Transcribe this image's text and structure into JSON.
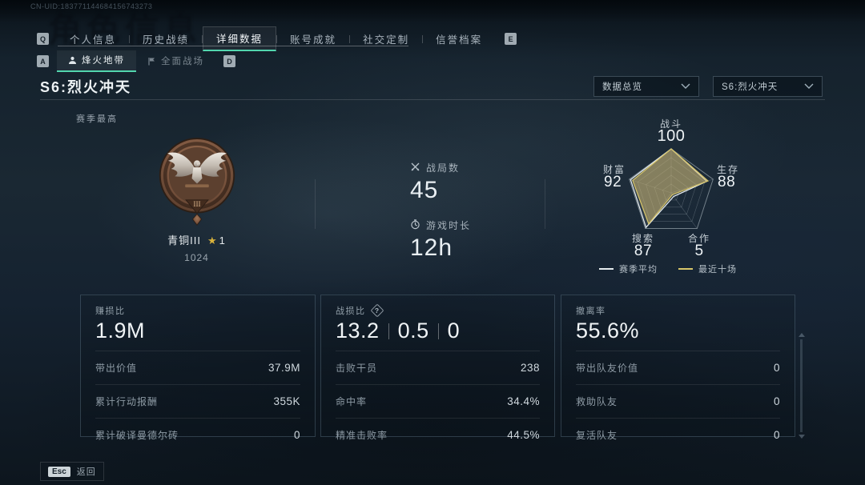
{
  "uid": "CN-UID:183771144684156743273",
  "ghost_title": "角色信息",
  "accent_color": "#52d6ae",
  "tabs": {
    "prev_key": "Q",
    "next_key": "E",
    "items": [
      {
        "label": "个人信息"
      },
      {
        "label": "历史战绩"
      },
      {
        "label": "详细数据"
      },
      {
        "label": "账号成就"
      },
      {
        "label": "社交定制"
      },
      {
        "label": "信誉档案"
      }
    ],
    "active": "详细数据"
  },
  "subtabs": {
    "prev_key": "A",
    "next_key": "D",
    "items": [
      {
        "label": "烽火地带",
        "icon": "person-icon"
      },
      {
        "label": "全面战场",
        "icon": "flag-icon"
      }
    ],
    "active": "烽火地带"
  },
  "page": {
    "title": "S6:烈火冲天",
    "season_section_label": "赛季最高"
  },
  "filters": {
    "data_scope": "数据总览",
    "season": "S6:烈火冲天"
  },
  "badge": {
    "tier": "青铜III",
    "star": "★",
    "star_count": "1",
    "points": "1024",
    "roman": "III"
  },
  "summary": {
    "matches_label": "战局数",
    "matches_value": "45",
    "playtime_label": "游戏时长",
    "playtime_value": "12h"
  },
  "chart_data": {
    "type": "radar",
    "title": "赛季最高",
    "categories": [
      "战斗",
      "生存",
      "合作",
      "搜索",
      "财富"
    ],
    "axis_values": [
      100,
      88,
      5,
      87,
      92
    ],
    "max": 100,
    "rings": 5,
    "series": [
      {
        "name": "赛季平均",
        "values": [
          100,
          85,
          10,
          97,
          97
        ],
        "color": "#e6ecef",
        "fill": "rgba(230,238,242,0.10)"
      },
      {
        "name": "最近十场",
        "values": [
          100,
          88,
          5,
          87,
          92
        ],
        "color": "#d8c66a",
        "fill": "rgba(203,181,112,0.55)"
      }
    ],
    "legend_position": "bottom"
  },
  "legend": [
    {
      "name": "赛季平均",
      "color": "#e6ecef"
    },
    {
      "name": "最近十场",
      "color": "#d8c66a"
    }
  ],
  "panels": [
    {
      "title": "赚损比",
      "value": "1.9M",
      "rows": [
        {
          "label": "带出价值",
          "value": "37.9M"
        },
        {
          "label": "累计行动报酬",
          "value": "355K"
        },
        {
          "label": "累计破译曼德尔砖",
          "value": "0"
        }
      ]
    },
    {
      "title": "战损比",
      "help": "?",
      "values": [
        "13.2",
        "0.5",
        "0"
      ],
      "rows": [
        {
          "label": "击败干员",
          "value": "238"
        },
        {
          "label": "命中率",
          "value": "34.4%"
        },
        {
          "label": "精准击败率",
          "value": "44.5%"
        }
      ]
    },
    {
      "title": "撤离率",
      "value": "55.6%",
      "rows": [
        {
          "label": "带出队友价值",
          "value": "0"
        },
        {
          "label": "救助队友",
          "value": "0"
        },
        {
          "label": "复活队友",
          "value": "0"
        }
      ]
    }
  ],
  "footer": {
    "esc_key": "Esc",
    "back_label": "返回"
  }
}
